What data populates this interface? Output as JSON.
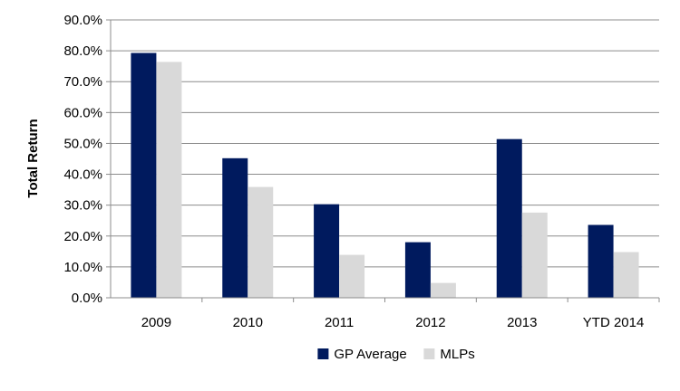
{
  "chart_data": {
    "type": "bar",
    "title": "",
    "xlabel": "",
    "ylabel": "Total Return",
    "categories": [
      "2009",
      "2010",
      "2011",
      "2012",
      "2013",
      "YTD 2014"
    ],
    "series": [
      {
        "name": "GP Average",
        "color": "#001a5e",
        "values": [
          79.3,
          45.2,
          30.3,
          18.0,
          51.4,
          23.6
        ]
      },
      {
        "name": "MLPs",
        "color": "#d9d9d9",
        "values": [
          76.4,
          35.9,
          13.9,
          4.8,
          27.6,
          14.8
        ]
      }
    ],
    "ylim": [
      0,
      90
    ],
    "ytick_step": 10,
    "ytick_format": "percent_1dp",
    "ytick_labels": [
      "0.0%",
      "10.0%",
      "20.0%",
      "30.0%",
      "40.0%",
      "50.0%",
      "60.0%",
      "70.0%",
      "80.0%",
      "90.0%"
    ],
    "grid": true,
    "legend_position": "bottom-center"
  }
}
